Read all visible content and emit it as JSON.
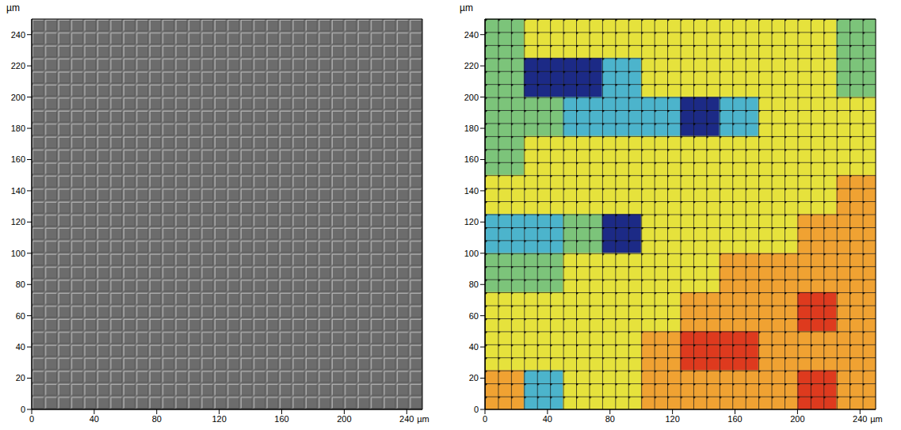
{
  "chart_data": [
    {
      "type": "image",
      "xlim": [
        0,
        250
      ],
      "ylim": [
        0,
        250
      ],
      "xticks": [
        0,
        40,
        80,
        120,
        160,
        200,
        240
      ],
      "yticks": [
        0,
        20,
        40,
        60,
        80,
        100,
        120,
        140,
        160,
        180,
        200,
        220,
        240
      ],
      "xlabel": "µm",
      "ylabel": "µm"
    },
    {
      "type": "heatmap",
      "xlim": [
        0,
        250
      ],
      "ylim": [
        0,
        250
      ],
      "xticks": [
        0,
        40,
        80,
        120,
        160,
        200,
        240
      ],
      "yticks": [
        0,
        20,
        40,
        60,
        80,
        100,
        120,
        140,
        160,
        180,
        200,
        220,
        240
      ],
      "xlabel": "µm",
      "ylabel": "µm",
      "clim": [
        0,
        5
      ],
      "cells": [
        [
          2,
          3,
          3,
          3,
          3,
          3,
          3,
          3,
          3,
          2
        ],
        [
          2,
          0,
          0,
          1,
          3,
          3,
          3,
          3,
          3,
          2
        ],
        [
          2,
          2,
          1,
          1,
          1,
          0,
          1,
          3,
          3,
          3
        ],
        [
          2,
          3,
          3,
          3,
          3,
          3,
          3,
          3,
          3,
          3
        ],
        [
          3,
          3,
          3,
          3,
          3,
          3,
          3,
          3,
          3,
          4
        ],
        [
          1,
          1,
          2,
          0,
          3,
          3,
          3,
          3,
          4,
          4
        ],
        [
          2,
          2,
          3,
          3,
          3,
          3,
          4,
          4,
          4,
          4
        ],
        [
          3,
          3,
          3,
          3,
          3,
          4,
          4,
          4,
          5,
          4
        ],
        [
          3,
          3,
          3,
          3,
          4,
          5,
          5,
          4,
          4,
          4
        ],
        [
          4,
          1,
          3,
          3,
          4,
          4,
          4,
          4,
          5,
          4
        ]
      ]
    }
  ]
}
